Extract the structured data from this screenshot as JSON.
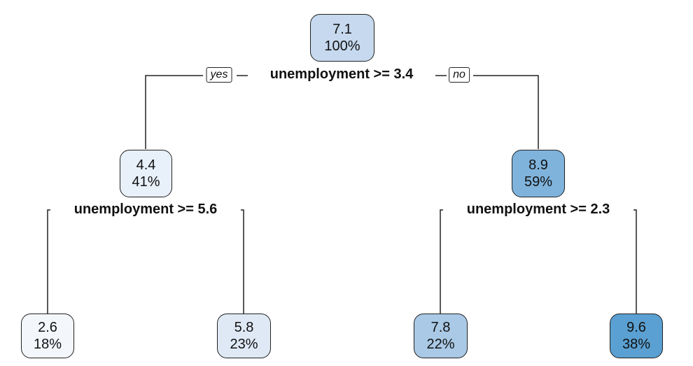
{
  "tree": {
    "nodes": [
      {
        "id": "root",
        "value": "7.1",
        "percent": "100%",
        "color": "#c6d9ee"
      },
      {
        "id": "left",
        "value": "4.4",
        "percent": "41%",
        "color": "#e8f0fa"
      },
      {
        "id": "right",
        "value": "8.9",
        "percent": "59%",
        "color": "#7fb3dc"
      },
      {
        "id": "left-left",
        "value": "2.6",
        "percent": "18%",
        "color": "#f3f7fc"
      },
      {
        "id": "left-right",
        "value": "5.8",
        "percent": "23%",
        "color": "#dfe9f6"
      },
      {
        "id": "right-left",
        "value": "7.8",
        "percent": "22%",
        "color": "#a9c9e6"
      },
      {
        "id": "right-right",
        "value": "9.6",
        "percent": "38%",
        "color": "#5aa0d2"
      }
    ],
    "splits": {
      "root": "unemployment >= 3.4",
      "left": "unemployment >= 5.6",
      "right": "unemployment >= 2.3"
    },
    "branch_tags": {
      "yes": "yes",
      "no": "no"
    }
  }
}
